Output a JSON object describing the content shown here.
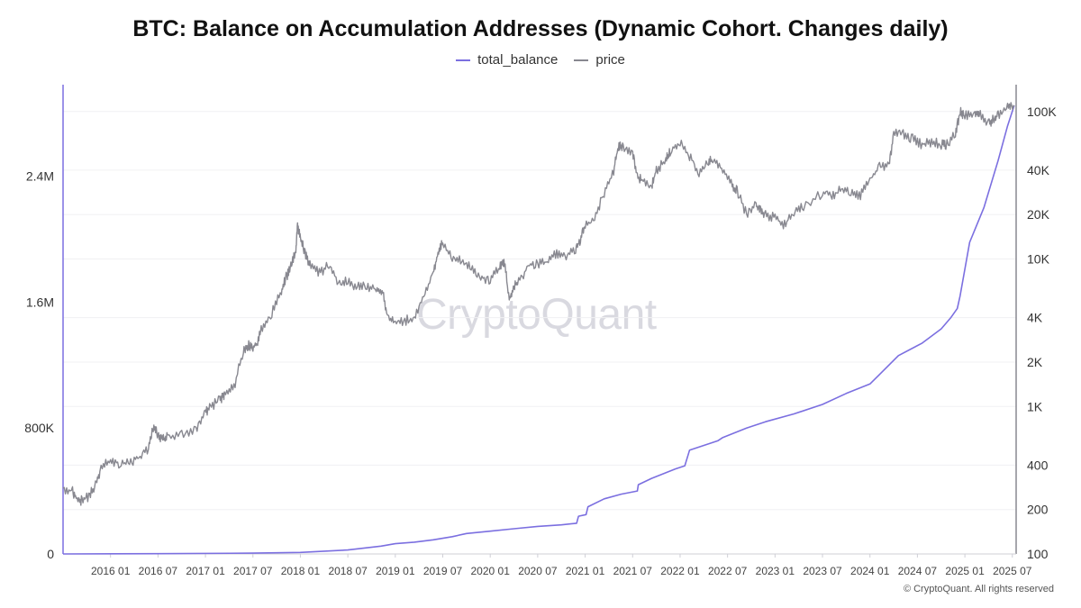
{
  "chart_data": {
    "type": "line",
    "title": "BTC: Balance on Accumulation Addresses (Dynamic Cohort. Changes daily)",
    "watermark": "CryptoQuant",
    "copyright": "© CryptoQuant. All rights reserved",
    "x_ticks": [
      "2016 01",
      "2016 07",
      "2017 01",
      "2017 07",
      "2018 01",
      "2018 07",
      "2019 01",
      "2019 07",
      "2020 01",
      "2020 07",
      "2021 01",
      "2021 07",
      "2022 01",
      "2022 07",
      "2023 01",
      "2023 07",
      "2024 01",
      "2024 07",
      "2025 01",
      "2025 07"
    ],
    "xlim": [
      2015.5,
      2025.54
    ],
    "left_axis": {
      "ticks": [
        0,
        800000,
        1600000,
        2400000
      ],
      "tick_labels": [
        "0",
        "800K",
        "1.6M",
        "2.4M"
      ],
      "ylim": [
        0,
        2850000
      ],
      "scale": "linear"
    },
    "right_axis": {
      "ticks": [
        100,
        200,
        400,
        1000,
        2000,
        4000,
        10000,
        20000,
        40000,
        100000
      ],
      "tick_labels": [
        "100",
        "200",
        "400",
        "1K",
        "2K",
        "4K",
        "10K",
        "20K",
        "40K",
        "100K"
      ],
      "ylim": [
        100,
        110000
      ],
      "scale": "log"
    },
    "series": [
      {
        "name": "total_balance",
        "axis": "left",
        "color": "#7b6fe0",
        "x": [
          2015.5,
          2016.5,
          2017.5,
          2018.0,
          2018.5,
          2018.85,
          2019.0,
          2019.2,
          2019.4,
          2019.6,
          2019.75,
          2020.0,
          2020.25,
          2020.5,
          2020.75,
          2020.91,
          2020.93,
          2021.01,
          2021.03,
          2021.2,
          2021.38,
          2021.55,
          2021.56,
          2021.7,
          2021.95,
          2022.05,
          2022.1,
          2022.3,
          2022.4,
          2022.45,
          2022.7,
          2022.9,
          2023.2,
          2023.5,
          2023.75,
          2024.0,
          2024.1,
          2024.3,
          2024.55,
          2024.75,
          2024.85,
          2024.92,
          2024.95,
          2025.05,
          2025.2,
          2025.35,
          2025.45,
          2025.52
        ],
        "values": [
          0,
          2000,
          5000,
          10000,
          25000,
          50000,
          65000,
          75000,
          90000,
          110000,
          130000,
          145000,
          160000,
          175000,
          185000,
          195000,
          240000,
          250000,
          300000,
          350000,
          380000,
          400000,
          440000,
          480000,
          540000,
          560000,
          660000,
          700000,
          720000,
          740000,
          800000,
          840000,
          890000,
          950000,
          1020000,
          1080000,
          1140000,
          1260000,
          1340000,
          1430000,
          1500000,
          1560000,
          1640000,
          1980000,
          2200000,
          2500000,
          2720000,
          2850000
        ]
      },
      {
        "name": "price",
        "axis": "right",
        "color": "#888890",
        "x": [
          2015.5,
          2015.6,
          2015.65,
          2015.7,
          2015.78,
          2015.85,
          2015.9,
          2016.0,
          2016.1,
          2016.2,
          2016.3,
          2016.4,
          2016.45,
          2016.5,
          2016.55,
          2016.6,
          2016.75,
          2016.9,
          2017.0,
          2017.05,
          2017.15,
          2017.2,
          2017.3,
          2017.4,
          2017.45,
          2017.5,
          2017.55,
          2017.6,
          2017.7,
          2017.8,
          2017.85,
          2017.9,
          2017.95,
          2017.97,
          2018.0,
          2018.05,
          2018.1,
          2018.2,
          2018.3,
          2018.4,
          2018.5,
          2018.6,
          2018.7,
          2018.8,
          2018.87,
          2018.92,
          2019.0,
          2019.1,
          2019.2,
          2019.3,
          2019.4,
          2019.45,
          2019.5,
          2019.6,
          2019.7,
          2019.8,
          2019.9,
          2020.0,
          2020.1,
          2020.15,
          2020.2,
          2020.25,
          2020.3,
          2020.4,
          2020.5,
          2020.6,
          2020.7,
          2020.8,
          2020.9,
          2020.95,
          2021.0,
          2021.1,
          2021.2,
          2021.3,
          2021.35,
          2021.4,
          2021.5,
          2021.55,
          2021.6,
          2021.7,
          2021.75,
          2021.85,
          2021.9,
          2022.0,
          2022.1,
          2022.2,
          2022.3,
          2022.35,
          2022.45,
          2022.55,
          2022.6,
          2022.7,
          2022.8,
          2022.85,
          2022.9,
          2023.0,
          2023.1,
          2023.2,
          2023.3,
          2023.5,
          2023.6,
          2023.7,
          2023.8,
          2023.9,
          2024.0,
          2024.1,
          2024.2,
          2024.25,
          2024.35,
          2024.45,
          2024.55,
          2024.65,
          2024.75,
          2024.8,
          2024.9,
          2024.95,
          2025.0,
          2025.1,
          2025.15,
          2025.25,
          2025.3,
          2025.35,
          2025.45,
          2025.52
        ],
        "values": [
          280,
          265,
          235,
          230,
          250,
          300,
          380,
          430,
          410,
          420,
          450,
          520,
          720,
          650,
          600,
          620,
          640,
          700,
          900,
          1000,
          1100,
          1200,
          1350,
          2400,
          2600,
          2500,
          2700,
          3500,
          4300,
          6000,
          7500,
          9000,
          11000,
          17000,
          14000,
          11000,
          9000,
          8000,
          9000,
          7000,
          7000,
          6500,
          6500,
          6400,
          6000,
          3900,
          3700,
          3800,
          4000,
          5500,
          8000,
          11000,
          13000,
          10000,
          10000,
          8500,
          7500,
          7300,
          9000,
          9500,
          5200,
          6500,
          7000,
          9000,
          9300,
          9500,
          11000,
          10500,
          11500,
          13500,
          17000,
          19000,
          28000,
          40000,
          58000,
          57000,
          53000,
          36000,
          34000,
          31000,
          40000,
          47000,
          55000,
          62000,
          50000,
          38000,
          45000,
          48000,
          40000,
          31000,
          29000,
          20000,
          23000,
          21000,
          20000,
          19000,
          17000,
          21000,
          23000,
          28000,
          27000,
          30000,
          29000,
          27000,
          34000,
          42000,
          43000,
          70000,
          71000,
          65000,
          60000,
          62000,
          60000,
          60000,
          70000,
          99000,
          93000,
          100000,
          97000,
          82000,
          88000,
          95000,
          105000,
          108000
        ]
      }
    ]
  },
  "legend": [
    {
      "label": "total_balance",
      "color": "#7b6fe0"
    },
    {
      "label": "price",
      "color": "#888890"
    }
  ]
}
